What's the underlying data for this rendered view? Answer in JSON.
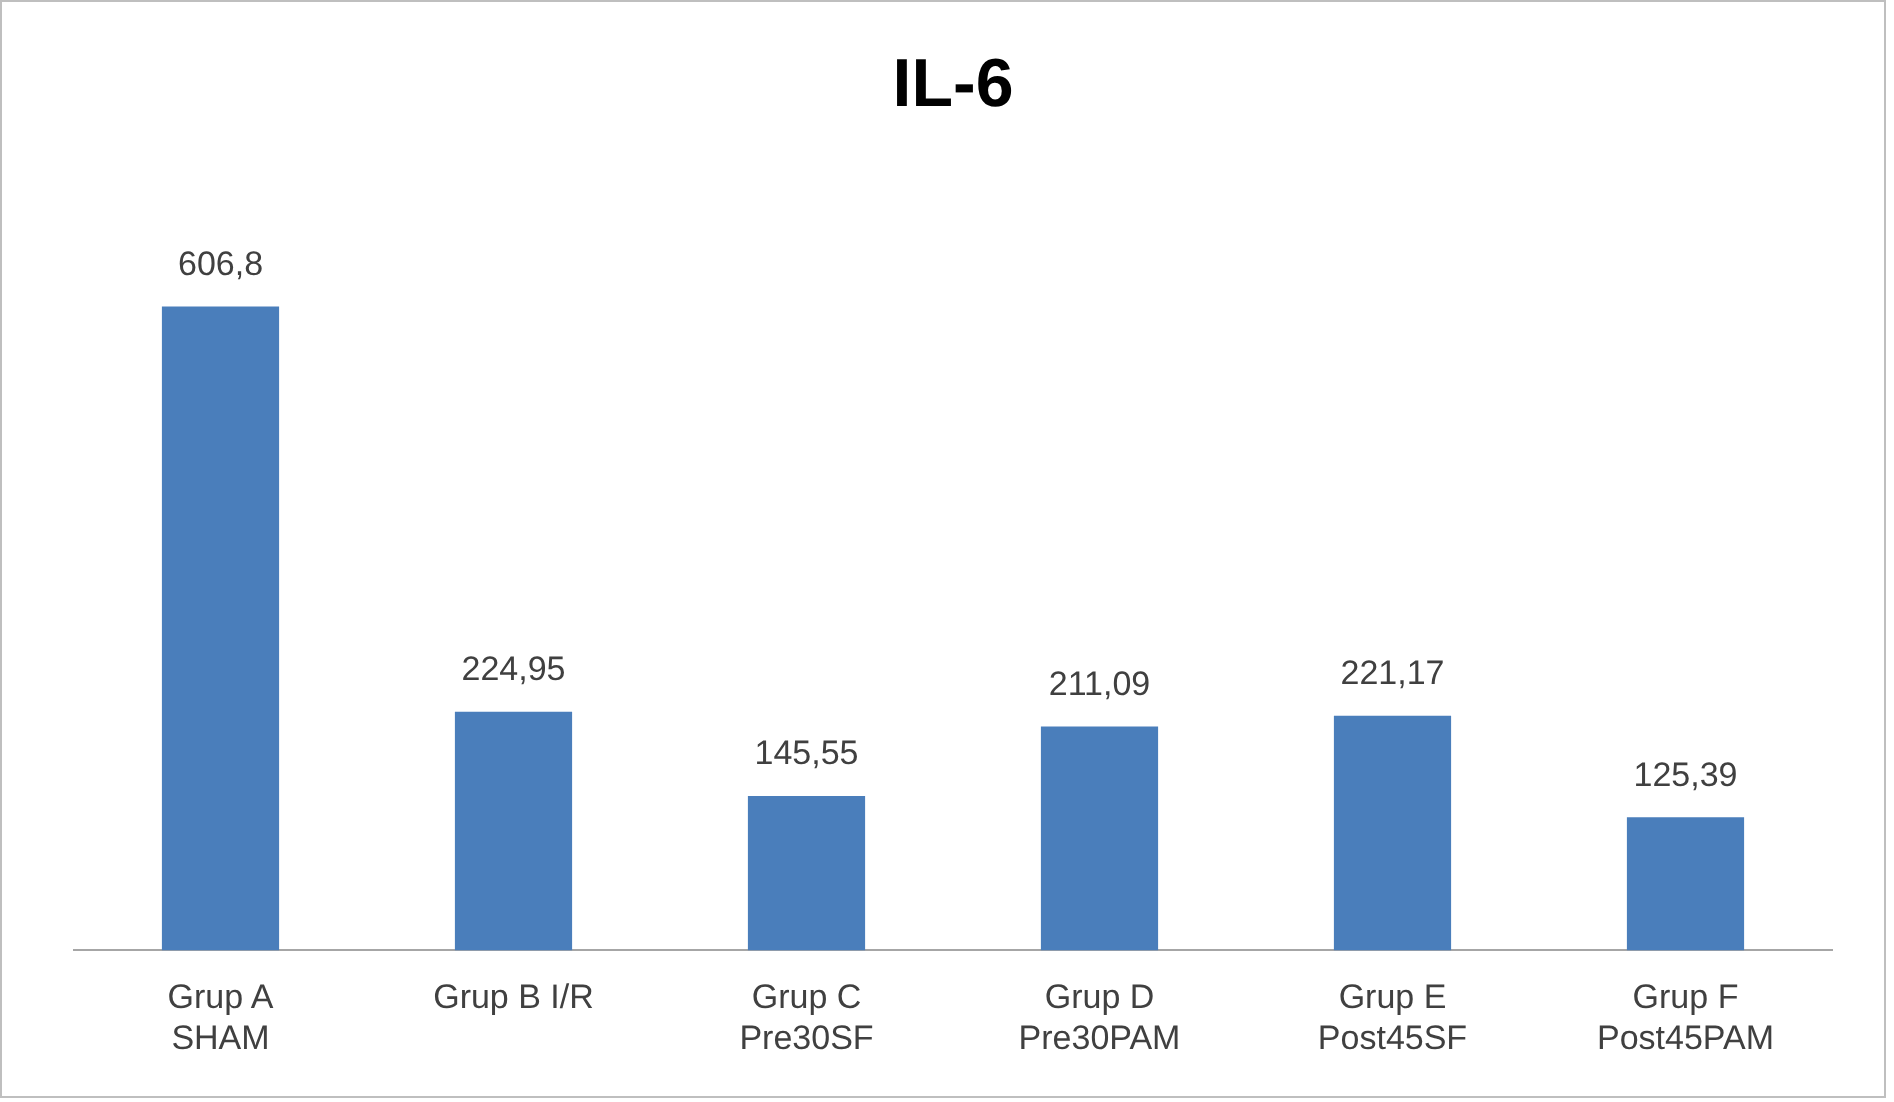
{
  "chart_data": {
    "type": "bar",
    "title": "IL-6",
    "categories": [
      "Grup A\nSHAM",
      "Grup B I/R",
      "Grup C\nPre30SF",
      "Grup D\nPre30PAM",
      "Grup E\nPost45SF",
      "Grup F\nPost45PAM"
    ],
    "values": [
      606.8,
      224.95,
      145.55,
      211.09,
      221.17,
      125.39
    ],
    "value_labels": [
      "606,8",
      "224,95",
      "145,55",
      "211,09",
      "221,17",
      "125,39"
    ],
    "color": "#4a7ebb",
    "grid": false,
    "legend": false,
    "tick_labels": "x"
  }
}
